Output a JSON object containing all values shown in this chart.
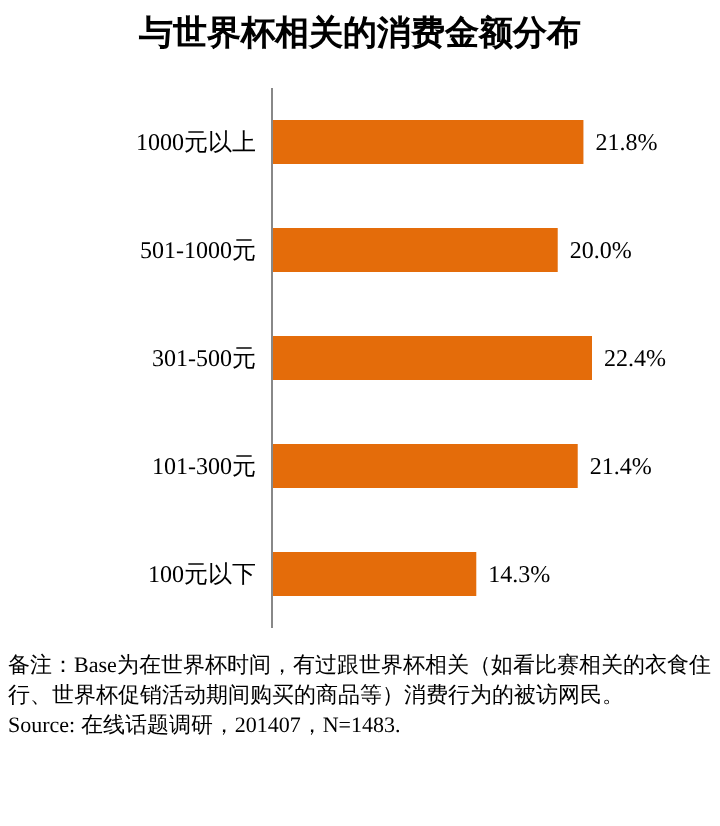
{
  "chart_data": {
    "type": "bar",
    "orientation": "horizontal",
    "title": "与世界杯相关的消费金额分布",
    "categories": [
      "1000元以上",
      "501-1000元",
      "301-500元",
      "101-300元",
      "100元以下"
    ],
    "values": [
      21.8,
      20.0,
      22.4,
      21.4,
      14.3
    ],
    "value_labels": [
      "21.8%",
      "20.0%",
      "22.4%",
      "21.4%",
      "14.3%"
    ],
    "color": "#e46c0a",
    "annotations": [
      "备注：Base为在世界杯时间，有过跟世界杯相关（如看比赛相关的衣食住行、世界杯促销活动期间购买的商品等）消费行为的被访网民。",
      "Source: 在线话题调研，201407，N=1483."
    ]
  }
}
